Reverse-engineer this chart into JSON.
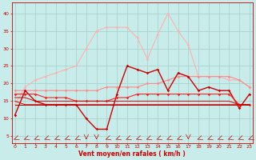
{
  "bg_color": "#c8ecea",
  "grid_color": "#aad4d0",
  "xlabel": "Vent moyen/en rafales ( km/h )",
  "xlabel_color": "#cc0000",
  "tick_color": "#cc0000",
  "arrow_color": "#cc0000",
  "x_ticks": [
    0,
    1,
    2,
    3,
    4,
    5,
    6,
    7,
    8,
    9,
    10,
    11,
    12,
    13,
    14,
    15,
    16,
    17,
    18,
    19,
    20,
    21,
    22,
    23
  ],
  "ylim": [
    3,
    43
  ],
  "xlim": [
    -0.3,
    23.3
  ],
  "yticks": [
    5,
    10,
    15,
    20,
    25,
    30,
    35,
    40
  ],
  "series": [
    {
      "color": "#ffb0b0",
      "linewidth": 0.8,
      "marker": "D",
      "markersize": 1.8,
      "y": [
        14,
        19,
        21,
        22,
        23,
        24,
        25,
        30,
        35,
        36,
        36,
        36,
        33,
        27,
        34,
        40,
        35,
        31,
        22,
        22,
        22,
        21,
        21,
        19
      ]
    },
    {
      "color": "#ff8888",
      "linewidth": 0.8,
      "marker": "D",
      "markersize": 1.8,
      "y": [
        18,
        18,
        18,
        18,
        18,
        18,
        18,
        18,
        18,
        19,
        19,
        19,
        19,
        20,
        20,
        21,
        22,
        22,
        22,
        22,
        22,
        22,
        21,
        19
      ]
    },
    {
      "color": "#cc0000",
      "linewidth": 1.0,
      "marker": "D",
      "markersize": 1.8,
      "y": [
        11,
        18,
        15,
        14,
        14,
        14,
        14,
        10,
        7,
        7,
        17,
        25,
        24,
        23,
        24,
        18,
        23,
        22,
        18,
        19,
        18,
        18,
        13,
        17
      ]
    },
    {
      "color": "#ff2222",
      "linewidth": 0.8,
      "marker": "D",
      "markersize": 1.8,
      "y": [
        17,
        17,
        17,
        16,
        16,
        16,
        15,
        15,
        15,
        15,
        16,
        16,
        17,
        17,
        17,
        17,
        17,
        17,
        17,
        17,
        17,
        17,
        14,
        14
      ]
    },
    {
      "color": "#dd0000",
      "linewidth": 0.7,
      "marker": null,
      "markersize": 0,
      "y": [
        16,
        16,
        15,
        15,
        15,
        15,
        15,
        15,
        15,
        15,
        15,
        15,
        15,
        15,
        15,
        15,
        15,
        15,
        15,
        15,
        15,
        15,
        14,
        14
      ]
    },
    {
      "color": "#dd0000",
      "linewidth": 0.7,
      "marker": null,
      "markersize": 0,
      "y": [
        15,
        14,
        14,
        14,
        14,
        14,
        14,
        14,
        14,
        14,
        14,
        14,
        14,
        14,
        14,
        14,
        14,
        14,
        14,
        14,
        14,
        14,
        14,
        14
      ]
    },
    {
      "color": "#aa0000",
      "linewidth": 0.7,
      "marker": null,
      "markersize": 0,
      "y": [
        14,
        14,
        14,
        14,
        14,
        14,
        14,
        14,
        14,
        14,
        14,
        14,
        14,
        14,
        14,
        14,
        14,
        14,
        14,
        14,
        14,
        14,
        14,
        14
      ]
    }
  ],
  "wind_arrows": [
    2,
    2,
    2,
    2,
    2,
    2,
    2,
    3,
    3,
    2,
    2,
    2,
    2,
    2,
    2,
    2,
    2,
    3,
    2,
    2,
    2,
    2,
    2,
    2
  ]
}
